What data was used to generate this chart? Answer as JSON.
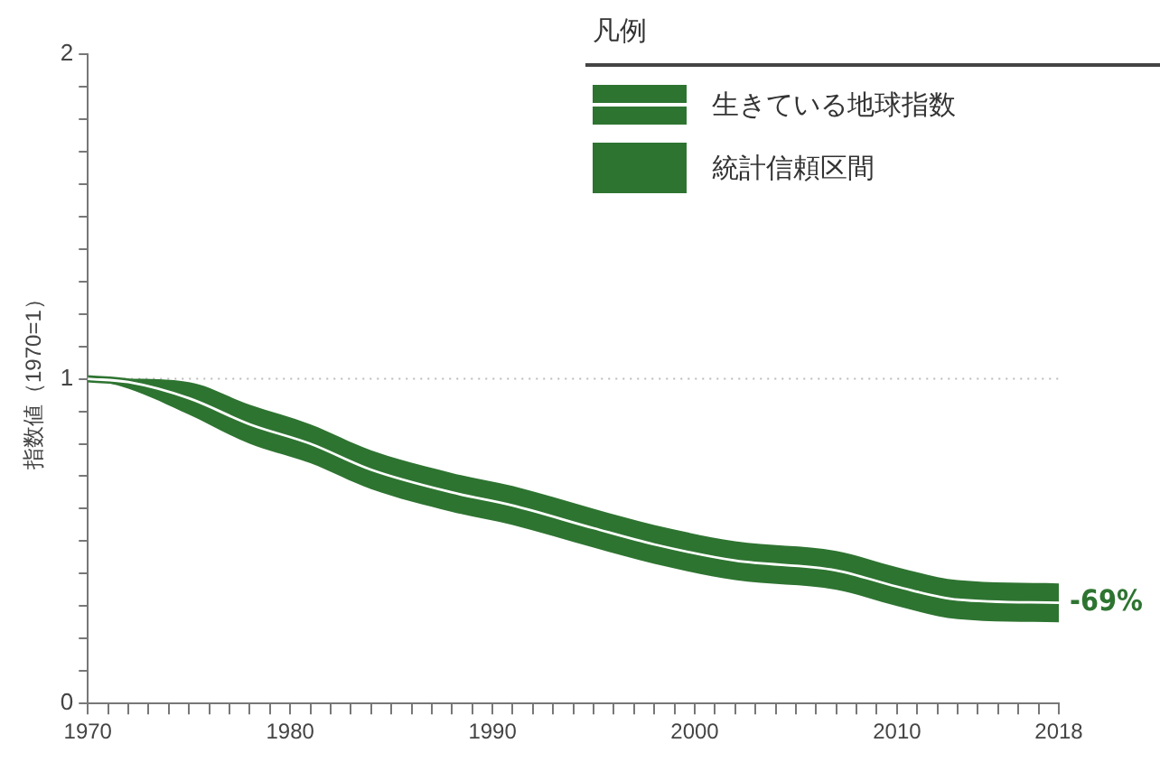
{
  "chart_data": {
    "type": "line",
    "legend_title": "凡例",
    "ylabel": "指数値（1970=1）",
    "x": [
      1970,
      1972,
      1975,
      1978,
      1981,
      1984,
      1988,
      1991,
      1995,
      1998,
      2002,
      2007,
      2010,
      2013,
      2018
    ],
    "series": [
      {
        "name": "生きている地球指数",
        "color": "#2e7431",
        "values": [
          1.0,
          0.99,
          0.94,
          0.86,
          0.8,
          0.72,
          0.65,
          0.61,
          0.54,
          0.49,
          0.44,
          0.41,
          0.36,
          0.32,
          0.31
        ],
        "lower": [
          1.0,
          0.97,
          0.89,
          0.8,
          0.74,
          0.66,
          0.59,
          0.55,
          0.48,
          0.43,
          0.38,
          0.35,
          0.3,
          0.26,
          0.25
        ],
        "upper": [
          1.0,
          1.0,
          0.99,
          0.92,
          0.86,
          0.78,
          0.71,
          0.67,
          0.6,
          0.55,
          0.5,
          0.47,
          0.42,
          0.38,
          0.37
        ]
      }
    ],
    "annotations": [
      "統計信頼区間",
      {
        "text": "-69%",
        "x": 2018,
        "y": 0.31
      }
    ],
    "ref_lines": [
      {
        "axis": "y",
        "value": 1,
        "color": "#bbbbbb",
        "line_style": "dotted"
      }
    ],
    "xlim": [
      1970,
      2018
    ],
    "xticks": [
      1970,
      {
        "value": 1971,
        "label": null
      },
      {
        "value": 1972,
        "label": null
      },
      {
        "value": 1973,
        "label": null
      },
      {
        "value": 1974,
        "label": null
      },
      {
        "value": 1975,
        "label": null
      },
      {
        "value": 1976,
        "label": null
      },
      {
        "value": 1977,
        "label": null
      },
      {
        "value": 1978,
        "label": null
      },
      {
        "value": 1979,
        "label": null
      },
      1980,
      {
        "value": 1981,
        "label": null
      },
      {
        "value": 1982,
        "label": null
      },
      {
        "value": 1983,
        "label": null
      },
      {
        "value": 1984,
        "label": null
      },
      {
        "value": 1985,
        "label": null
      },
      {
        "value": 1986,
        "label": null
      },
      {
        "value": 1987,
        "label": null
      },
      {
        "value": 1988,
        "label": null
      },
      {
        "value": 1989,
        "label": null
      },
      1990,
      {
        "value": 1991,
        "label": null
      },
      {
        "value": 1992,
        "label": null
      },
      {
        "value": 1993,
        "label": null
      },
      {
        "value": 1994,
        "label": null
      },
      {
        "value": 1995,
        "label": null
      },
      {
        "value": 1996,
        "label": null
      },
      {
        "value": 1997,
        "label": null
      },
      {
        "value": 1998,
        "label": null
      },
      {
        "value": 1999,
        "label": null
      },
      2000,
      {
        "value": 2001,
        "label": null
      },
      {
        "value": 2002,
        "label": null
      },
      {
        "value": 2003,
        "label": null
      },
      {
        "value": 2004,
        "label": null
      },
      {
        "value": 2005,
        "label": null
      },
      {
        "value": 2006,
        "label": null
      },
      {
        "value": 2007,
        "label": null
      },
      {
        "value": 2008,
        "label": null
      },
      {
        "value": 2009,
        "label": null
      },
      2010,
      {
        "value": 2011,
        "label": null
      },
      {
        "value": 2012,
        "label": null
      },
      {
        "value": 2013,
        "label": null
      },
      {
        "value": 2014,
        "label": null
      },
      {
        "value": 2015,
        "label": null
      },
      {
        "value": 2016,
        "label": null
      },
      {
        "value": 2017,
        "label": null
      },
      2018
    ],
    "ylim": [
      0,
      2
    ],
    "yticks": [
      0,
      {
        "value": 0.1,
        "label": null
      },
      {
        "value": 0.2,
        "label": null
      },
      {
        "value": 0.3,
        "label": null
      },
      {
        "value": 0.4,
        "label": null
      },
      {
        "value": 0.5,
        "label": null
      },
      {
        "value": 0.6,
        "label": null
      },
      {
        "value": 0.7,
        "label": null
      },
      {
        "value": 0.8,
        "label": null
      },
      {
        "value": 0.9,
        "label": null
      },
      1,
      {
        "value": 1.1,
        "label": null
      },
      {
        "value": 1.2,
        "label": null
      },
      {
        "value": 1.3,
        "label": null
      },
      {
        "value": 1.4,
        "label": null
      },
      {
        "value": 1.5,
        "label": null
      },
      {
        "value": 1.6,
        "label": null
      },
      {
        "value": 1.7,
        "label": null
      },
      {
        "value": 1.8,
        "label": null
      },
      {
        "value": 1.9,
        "label": null
      },
      2
    ],
    "grid": false,
    "legend": "top right",
    "marker": "none",
    "line_style": "solid"
  }
}
